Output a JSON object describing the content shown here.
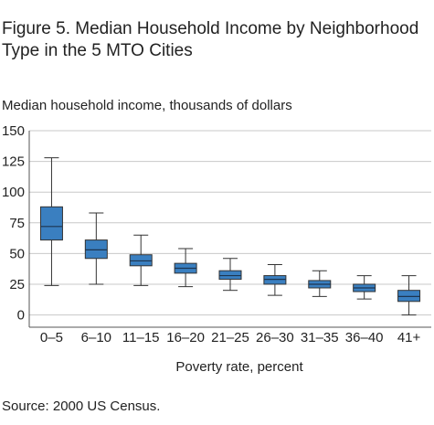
{
  "title": "Figure 5. Median Household Income by Neighborhood Type in the 5 MTO Cities",
  "source": "Source: 2000 US Census.",
  "chart_data": {
    "type": "boxplot",
    "ylabel": "Median household income, thousands of dollars",
    "xlabel": "Poverty rate, percent",
    "ylim": [
      -10,
      150
    ],
    "yticks": [
      0,
      25,
      50,
      75,
      100,
      125,
      150
    ],
    "grid": true,
    "box_color": "#3a7fc0",
    "categories": [
      "0–5",
      "6–10",
      "11–15",
      "16–20",
      "21–25",
      "26–30",
      "31–35",
      "36–40",
      "41+"
    ],
    "boxes": [
      {
        "min": 24,
        "q1": 61,
        "median": 72,
        "q3": 88,
        "max": 128
      },
      {
        "min": 25,
        "q1": 46,
        "median": 53,
        "q3": 61,
        "max": 83
      },
      {
        "min": 24,
        "q1": 40,
        "median": 44,
        "q3": 49,
        "max": 65
      },
      {
        "min": 23,
        "q1": 34,
        "median": 38,
        "q3": 42,
        "max": 54
      },
      {
        "min": 20,
        "q1": 29,
        "median": 32,
        "q3": 36,
        "max": 46
      },
      {
        "min": 16,
        "q1": 25,
        "median": 29,
        "q3": 32,
        "max": 41
      },
      {
        "min": 15,
        "q1": 22,
        "median": 25,
        "q3": 28,
        "max": 36
      },
      {
        "min": 13,
        "q1": 19,
        "median": 22,
        "q3": 25,
        "max": 32
      },
      {
        "min": 0,
        "q1": 11,
        "median": 15,
        "q3": 20,
        "max": 32
      }
    ]
  }
}
